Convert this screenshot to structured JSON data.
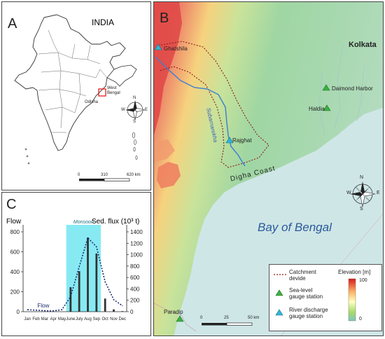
{
  "panel_a": {
    "label": "A",
    "title": "INDIA",
    "state_label_1": "West",
    "state_label_2": "Bengal",
    "state_label_3": "Odisha",
    "compass": {
      "n": "N",
      "s": "S",
      "e": "E",
      "w": "W"
    },
    "scale_ticks": [
      "0",
      "310",
      "620 km"
    ]
  },
  "panel_b": {
    "label": "B",
    "places": {
      "ghatshila": "Ghatshila",
      "kolkata": "Kolkata",
      "daimond_harbor": "Daimond Harbor",
      "haldia": "Haldia",
      "rajghat": "Rajghat",
      "paradip": "Paradip",
      "river": "Subarnarekha",
      "coast": "Digha Coast",
      "bay": "Bay of Bengal"
    },
    "compass": {
      "n": "N",
      "s": "S",
      "e": "E",
      "w": "W"
    },
    "scale_ticks": [
      "0",
      "25",
      "50 km"
    ],
    "legend": {
      "catchment": "Catchment\ndevide",
      "sea_level": "Sea-level\ngauge station",
      "river_discharge": "River discharge\ngauge station",
      "elevation_title": "Elevation [m]",
      "elev_max": "100",
      "elev_min": "0"
    },
    "colors": {
      "sea": "#cfe6e7",
      "high": "#e8524f",
      "mid": "#f2d97a",
      "low": "#8fd19a",
      "sea_gauge": "#3cb043",
      "river_gauge": "#2fb6d6",
      "catchment": "#8b1a1a"
    }
  },
  "panel_c": {
    "label": "C",
    "monsoon_label": "Monsoon",
    "flow_legend": "Flow",
    "chart_data": {
      "type": "bar",
      "categories": [
        "Jan",
        "Feb",
        "Mar",
        "Apr",
        "May",
        "June",
        "July",
        "Aug",
        "Sep",
        "Oct",
        "Nov",
        "Dec"
      ],
      "left_axis_label": "Flow",
      "right_axis_label": "Sed. flux (10³ t)",
      "left_ylim": [
        0,
        800
      ],
      "left_ticks": [
        "0",
        "200",
        "400",
        "600",
        "800"
      ],
      "right_ylim": [
        0,
        1400
      ],
      "right_ticks": [
        "0",
        "200",
        "400",
        "600",
        "800",
        "1000",
        "1200",
        "1400"
      ],
      "series": [
        {
          "name": "Flow",
          "type": "line",
          "axis": "left",
          "values": [
            20,
            15,
            10,
            8,
            20,
            150,
            450,
            740,
            650,
            300,
            120,
            60
          ]
        },
        {
          "type": "bar",
          "axis": "right",
          "values": [
            0,
            0,
            0,
            0,
            0,
            430,
            710,
            1300,
            1020,
            230,
            40,
            10
          ]
        }
      ],
      "monsoon_months": [
        "June",
        "Sep"
      ]
    }
  }
}
